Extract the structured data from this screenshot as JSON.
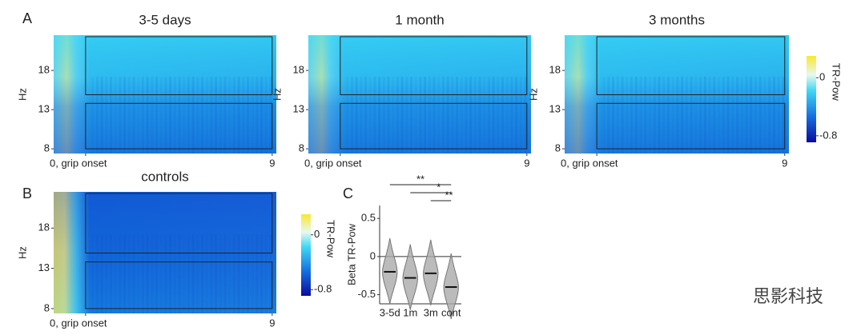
{
  "figure": {
    "panel_labels": [
      "A",
      "B",
      "C"
    ],
    "heatmaps": [
      {
        "title": "3-5 days",
        "ylabel": "Hz",
        "xlim": [
          -1.54,
          9.2
        ],
        "ylim": [
          7.4,
          22.5
        ],
        "yticks": [
          8,
          13,
          18
        ],
        "xticks": [
          {
            "value": 0,
            "label": "0, grip onset"
          },
          9
        ],
        "windows": [
          [
            0,
            9,
            14.9,
            22.3
          ],
          [
            0,
            9,
            8,
            13.8
          ]
        ]
      },
      {
        "title": "1 month",
        "ylabel": "Hz",
        "xlim": [
          -1.54,
          9.2
        ],
        "ylim": [
          7.4,
          22.5
        ],
        "yticks": [
          8,
          13,
          18
        ],
        "xticks": [
          {
            "value": 0,
            "label": "0, grip onset"
          },
          9
        ],
        "windows": [
          [
            0,
            9,
            14.9,
            22.3
          ],
          [
            0,
            9,
            8,
            13.8
          ]
        ]
      },
      {
        "title": "3 months",
        "ylabel": "Hz",
        "xlim": [
          -1.54,
          9.2
        ],
        "ylim": [
          7.4,
          22.5
        ],
        "yticks": [
          8,
          13,
          18
        ],
        "xticks": [
          {
            "value": 0,
            "label": "0, grip onset"
          },
          9
        ],
        "windows": [
          [
            0,
            9,
            14.9,
            22.3
          ],
          [
            0,
            9,
            8,
            13.8
          ]
        ]
      },
      {
        "title": "controls",
        "ylabel": "Hz",
        "xlim": [
          -1.54,
          9.2
        ],
        "ylim": [
          7.4,
          22.5
        ],
        "yticks": [
          8,
          13,
          18
        ],
        "xticks": [
          {
            "value": 0,
            "label": "0, grip onset"
          },
          9
        ],
        "windows": [
          [
            0,
            9,
            14.9,
            22.3
          ],
          [
            0,
            9,
            8,
            13.8
          ]
        ]
      }
    ],
    "colorbar": {
      "label": "TR-Pow",
      "lim": [
        -0.89,
        0.3
      ],
      "ticks": [
        0,
        -0.8
      ]
    },
    "violin": {
      "type": "violin",
      "ylabel": "Beta TR-Pow",
      "categories": [
        "3-5d",
        "1m",
        "3m",
        "cont"
      ],
      "medians": [
        -0.2,
        -0.28,
        -0.22,
        -0.4
      ],
      "ylim": [
        -0.62,
        0.67
      ],
      "yticks": [
        0.5,
        0,
        -0.5
      ],
      "reference_line": 0,
      "significance": [
        {
          "label": "**",
          "from": 0,
          "to": 3
        },
        {
          "label": "*",
          "from": 1,
          "to": 3
        },
        {
          "label": "**",
          "from": 2,
          "to": 3
        }
      ]
    },
    "watermark": "思影科技"
  }
}
